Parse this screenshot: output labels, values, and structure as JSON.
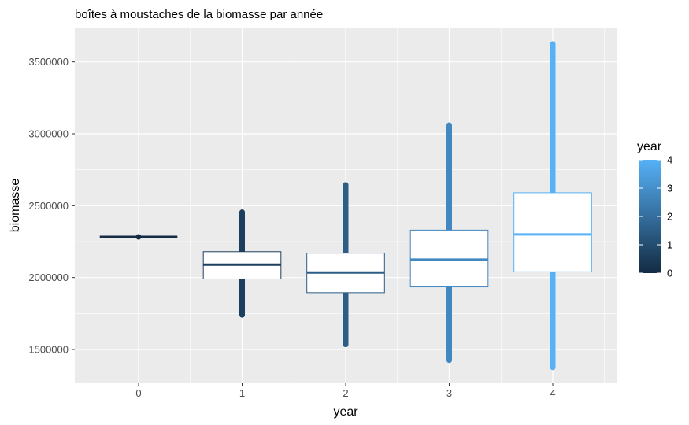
{
  "chart_data": {
    "type": "boxplot",
    "title": "boîtes à moustaches de la biomasse par année",
    "xlabel": "year",
    "ylabel": "biomasse",
    "categories": [
      "0",
      "1",
      "2",
      "3",
      "4"
    ],
    "ylim": [
      1300000,
      3680000
    ],
    "y_ticks": [
      1500000,
      2000000,
      2500000,
      3000000,
      3500000
    ],
    "y_tick_labels": [
      "1500000",
      "2000000",
      "2500000",
      "3000000",
      "3500000"
    ],
    "grid": true,
    "boxes": [
      {
        "year": "0",
        "q1": 2283000,
        "median": 2283000,
        "q3": 2283000,
        "whisker_low": 2283000,
        "whisker_high": 2283000,
        "outlier_low": 2283000,
        "outlier_high": 2283000,
        "color": "#132b43"
      },
      {
        "year": "1",
        "q1": 1990000,
        "median": 2090000,
        "q3": 2180000,
        "whisker_low": 1750000,
        "whisker_high": 2450000,
        "outlier_low": 1740000,
        "outlier_high": 2455000,
        "color": "#1d3f5e"
      },
      {
        "year": "2",
        "q1": 1895000,
        "median": 2035000,
        "q3": 2170000,
        "whisker_low": 1540000,
        "whisker_high": 2640000,
        "outlier_low": 1535000,
        "outlier_high": 2645000,
        "color": "#2b5d87"
      },
      {
        "year": "3",
        "q1": 1935000,
        "median": 2125000,
        "q3": 2330000,
        "whisker_low": 1430000,
        "whisker_high": 3060000,
        "outlier_low": 1425000,
        "outlier_high": 3060000,
        "color": "#4187c1"
      },
      {
        "year": "4",
        "q1": 2040000,
        "median": 2300000,
        "q3": 2590000,
        "whisker_low": 1380000,
        "whisker_high": 3620000,
        "outlier_low": 1375000,
        "outlier_high": 3625000,
        "color": "#56b1f7"
      }
    ],
    "legend": {
      "title": "year",
      "placement": "right",
      "low_color": "#132b43",
      "high_color": "#56b1f7",
      "min": 0,
      "max": 4,
      "tick_labels": [
        "0",
        "1",
        "2",
        "3",
        "4"
      ]
    },
    "panel_background": "#ebebeb",
    "grid_color": "#ffffff"
  }
}
